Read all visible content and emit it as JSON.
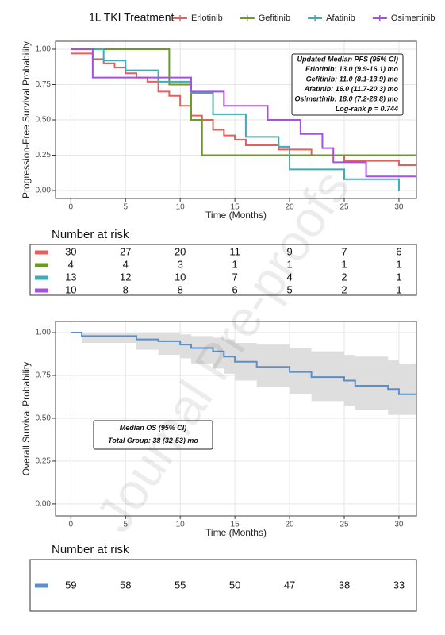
{
  "watermark": "Journal Pre-proofs",
  "chart_data": [
    {
      "type": "step",
      "legend_title": "1L TKI Treatment",
      "xlabel": "Time (Months)",
      "ylabel": "Progression-Free Survival Probability",
      "xlim": [
        -1.4,
        31.6
      ],
      "xticks": [
        0,
        5,
        10,
        15,
        20,
        25,
        30
      ],
      "ylim": [
        -0.056,
        1.056
      ],
      "yticks": [
        {
          "value": 0,
          "label": "0.00"
        },
        {
          "value": 0.25,
          "label": "0.25"
        },
        {
          "value": 0.5,
          "label": "0.50"
        },
        {
          "value": 0.75,
          "label": "0.75"
        },
        {
          "value": 1,
          "label": "1.00"
        }
      ],
      "grid": true,
      "annotation": [
        "Updated Median PFS (95% CI)",
        "Erlotinib: 13.0 (9.9-16.1) mo",
        "Gefitinib: 11.0 (8.1-13.9) mo",
        "Afatinib: 16.0 (11.7-20.3) mo",
        "Osimertinib: 18.0 (7.2-28.8) mo",
        "Log-rank p = 0.744"
      ],
      "series": [
        {
          "name": "Erlotinib",
          "color": "#e0625c",
          "x": [
            0,
            2,
            3,
            4,
            5,
            6,
            7,
            8,
            9,
            10,
            11,
            12,
            13,
            14,
            15,
            16,
            19,
            22,
            25,
            30,
            31.6
          ],
          "values": [
            0.97,
            0.93,
            0.9,
            0.87,
            0.83,
            0.8,
            0.77,
            0.7,
            0.67,
            0.6,
            0.53,
            0.5,
            0.43,
            0.39,
            0.36,
            0.32,
            0.29,
            0.25,
            0.21,
            0.18,
            0.18
          ]
        },
        {
          "name": "Gefitinib",
          "color": "#6b9a28",
          "x": [
            0,
            9,
            11,
            12,
            31.6
          ],
          "values": [
            1,
            0.75,
            0.5,
            0.25,
            0.25
          ]
        },
        {
          "name": "Afatinib",
          "color": "#3fabb2",
          "x": [
            0,
            3,
            5,
            8,
            11,
            13,
            16,
            19,
            20,
            25,
            30
          ],
          "values": [
            1,
            0.92,
            0.85,
            0.77,
            0.69,
            0.54,
            0.38,
            0.31,
            0.15,
            0.08,
            0.0
          ]
        },
        {
          "name": "Osimertinib",
          "color": "#a74fe0",
          "x": [
            0,
            2,
            11,
            14,
            18,
            21,
            23,
            24,
            27,
            31.6
          ],
          "values": [
            1,
            0.8,
            0.7,
            0.6,
            0.5,
            0.4,
            0.3,
            0.2,
            0.1,
            0.1
          ]
        }
      ],
      "risk_table": {
        "title": "Number at risk",
        "rows": [
          [
            30,
            27,
            20,
            11,
            9,
            7,
            6
          ],
          [
            4,
            4,
            3,
            1,
            1,
            1,
            1
          ],
          [
            13,
            12,
            10,
            7,
            4,
            2,
            1
          ],
          [
            10,
            8,
            8,
            6,
            5,
            2,
            1
          ]
        ]
      }
    },
    {
      "type": "step",
      "xlabel": "Time (Months)",
      "ylabel": "Overall Survival Probability",
      "xlim": [
        -1.4,
        31.6
      ],
      "xticks": [
        0,
        5,
        10,
        15,
        20,
        25,
        30
      ],
      "ylim": [
        -0.07,
        1.065
      ],
      "yticks": [
        {
          "value": 0,
          "label": "0.00"
        },
        {
          "value": 0.25,
          "label": "0.25"
        },
        {
          "value": 0.5,
          "label": "0.50"
        },
        {
          "value": 0.75,
          "label": "0.75"
        },
        {
          "value": 1,
          "label": "1.00"
        }
      ],
      "grid": true,
      "annotation": [
        "Median OS (95% CI)",
        "Total Group: 38 (32-53) mo"
      ],
      "series": [
        {
          "color": "#5b8fc9",
          "band_color": "#dedede",
          "x": [
            0,
            1,
            6,
            8,
            10,
            11,
            13,
            14,
            15,
            17,
            20,
            22,
            25,
            26,
            29,
            30,
            31.6
          ],
          "values": [
            1,
            0.98,
            0.96,
            0.95,
            0.93,
            0.91,
            0.89,
            0.86,
            0.83,
            0.8,
            0.77,
            0.74,
            0.72,
            0.69,
            0.67,
            0.64,
            0.64
          ],
          "ci_upper": [
            1,
            1,
            1,
            1,
            0.99,
            0.98,
            0.97,
            0.96,
            0.94,
            0.93,
            0.91,
            0.89,
            0.87,
            0.86,
            0.84,
            0.82,
            0.82
          ],
          "ci_lower": [
            1,
            0.94,
            0.9,
            0.87,
            0.85,
            0.82,
            0.79,
            0.76,
            0.72,
            0.68,
            0.64,
            0.6,
            0.57,
            0.55,
            0.52,
            0.52,
            0.52
          ]
        }
      ],
      "risk_table": {
        "title": "Number at risk",
        "rows": [
          [
            59,
            58,
            55,
            50,
            47,
            38,
            33
          ]
        ]
      }
    }
  ]
}
